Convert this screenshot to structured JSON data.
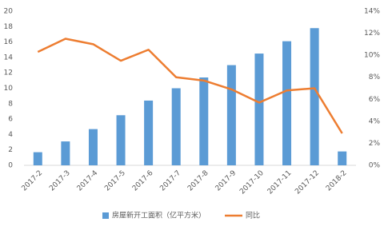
{
  "chart_data": {
    "type": "bar",
    "categories": [
      "2017-2",
      "2017-3",
      "2017-4",
      "2017-5",
      "2017-6",
      "2017-7",
      "2017-8",
      "2017-9",
      "2017-10",
      "2017-11",
      "2017-12",
      "2018-2"
    ],
    "series": [
      {
        "name": "房屋新开工面积（亿平方米）",
        "type": "bar",
        "color": "#5b9bd5",
        "values": [
          1.7,
          3.1,
          4.7,
          6.5,
          8.4,
          10.0,
          11.4,
          13.0,
          14.5,
          16.1,
          17.8,
          1.8
        ]
      },
      {
        "name": "同比",
        "type": "line",
        "axis": "y2",
        "color": "#ed7d31",
        "values": [
          10.3,
          11.5,
          11.0,
          9.5,
          10.5,
          8.0,
          7.7,
          6.9,
          5.7,
          6.8,
          7.0,
          2.9
        ]
      }
    ],
    "ylim": [
      0,
      20
    ],
    "yticks": [
      0,
      2,
      4,
      6,
      8,
      10,
      12,
      14,
      16,
      18,
      20
    ],
    "y2lim": [
      0,
      14
    ],
    "y2ticks": [
      {
        "value": 0,
        "label": "0%"
      },
      {
        "value": 2,
        "label": "2%"
      },
      {
        "value": 4,
        "label": "4%"
      },
      {
        "value": 6,
        "label": "6%"
      },
      {
        "value": 8,
        "label": "8%"
      },
      {
        "value": 10,
        "label": "10%"
      },
      {
        "value": 12,
        "label": "12%"
      },
      {
        "value": 14,
        "label": "14%"
      }
    ],
    "grid": false,
    "legend": "bottom"
  }
}
